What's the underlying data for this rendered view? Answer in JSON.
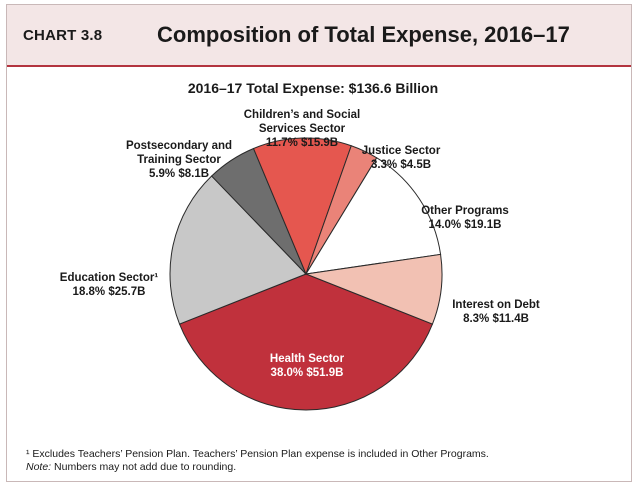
{
  "header": {
    "chart_label": "CHART 3.8",
    "title": "Composition of Total Expense, 2016–17"
  },
  "colors": {
    "header_bg": "#f3e6e6",
    "accent_line": "#b3343f"
  },
  "chart_data": {
    "type": "pie",
    "title": "Composition of Total Expense, 2016–17",
    "subtitle": "2016–17 Total Expense: $136.6 Billion",
    "total": "$136.6 Billion",
    "slices": [
      {
        "name": "Health Sector",
        "label_lines": [
          "Health Sector"
        ],
        "value_text": "38.0%  $51.9B",
        "percent": 38.0,
        "amount": 51.9,
        "color": "#c0313c"
      },
      {
        "name": "Education Sector",
        "label_lines": [
          "Education Sector¹"
        ],
        "value_text": "18.8%  $25.7B",
        "percent": 18.8,
        "amount": 25.7,
        "color": "#c8c8c8"
      },
      {
        "name": "Postsecondary and Training Sector",
        "label_lines": [
          "Postsecondary and",
          "Training Sector"
        ],
        "value_text": "5.9%  $8.1B",
        "percent": 5.9,
        "amount": 8.1,
        "color": "#6e6e6e"
      },
      {
        "name": "Children's and Social Services Sector",
        "label_lines": [
          "Children’s and Social",
          "Services Sector"
        ],
        "value_text": "11.7%  $15.9B",
        "percent": 11.7,
        "amount": 15.9,
        "color": "#e5574f"
      },
      {
        "name": "Justice Sector",
        "label_lines": [
          "Justice Sector"
        ],
        "value_text": "3.3%  $4.5B",
        "percent": 3.3,
        "amount": 4.5,
        "color": "#ea8378"
      },
      {
        "name": "Other Programs",
        "label_lines": [
          "Other Programs"
        ],
        "value_text": "14.0%  $19.1B",
        "percent": 14.0,
        "amount": 19.1,
        "color": "#ffffff"
      },
      {
        "name": "Interest on Debt",
        "label_lines": [
          "Interest on Debt"
        ],
        "value_text": "8.3%  $11.4B",
        "percent": 8.3,
        "amount": 11.4,
        "color": "#f2c1b3"
      }
    ],
    "footnotes": {
      "note1": "¹ Excludes Teachers’ Pension Plan. Teachers’ Pension Plan expense is included in Other Programs.",
      "note_label": "Note:",
      "note_text": " Numbers may not add due to rounding."
    }
  }
}
